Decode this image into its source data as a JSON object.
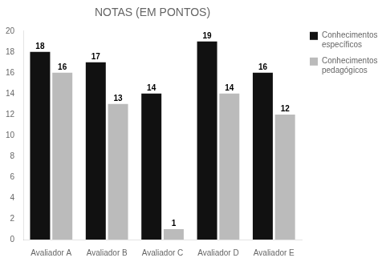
{
  "chart_data": {
    "type": "bar",
    "title": "NOTAS (EM PONTOS)",
    "categories": [
      "Avaliador A",
      "Avaliador B",
      "Avaliador C",
      "Avaliador D",
      "Avaliador E"
    ],
    "series": [
      {
        "name": "Conhecimentos\nespecíficos",
        "color": "#111111",
        "values": [
          18,
          17,
          14,
          19,
          16
        ]
      },
      {
        "name": "Conhecimentos\npedagógicos",
        "color": "#bbbbbb",
        "values": [
          16,
          13,
          1,
          14,
          12
        ]
      }
    ],
    "ylim": [
      0,
      20
    ],
    "yticks": [
      0,
      2,
      4,
      6,
      8,
      10,
      12,
      14,
      16,
      18,
      20
    ],
    "grid": false,
    "legend": "upper right",
    "data_labels": true
  }
}
